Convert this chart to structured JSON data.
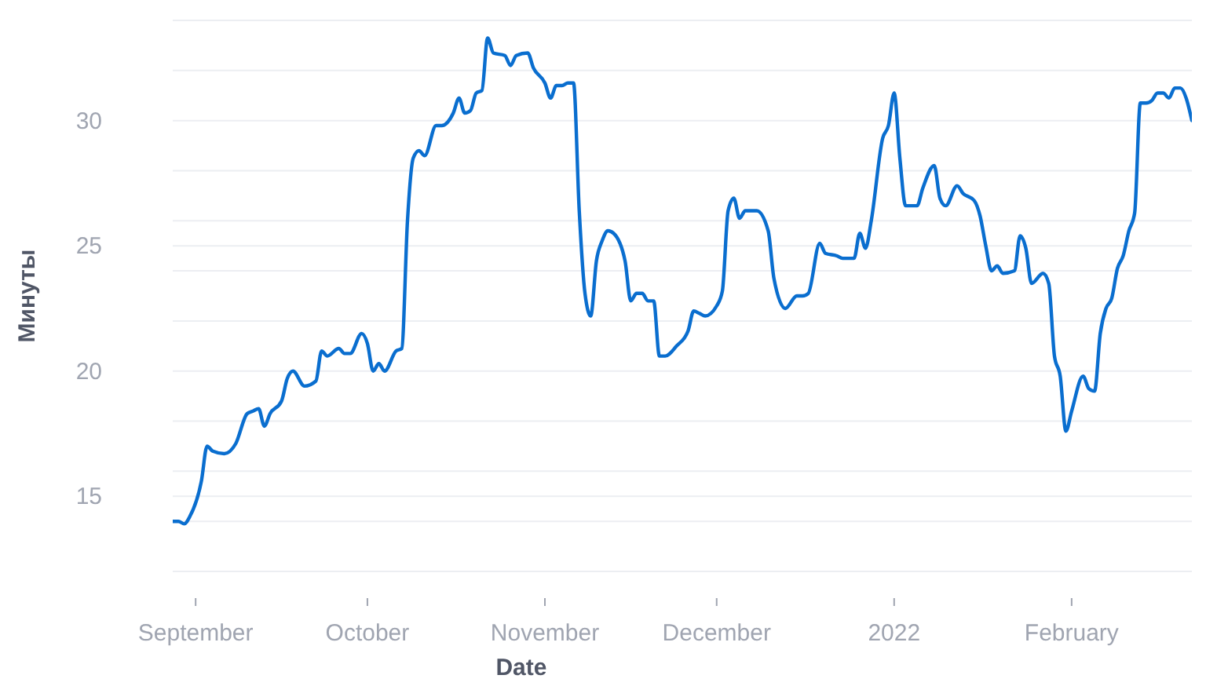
{
  "chart_data": {
    "type": "line",
    "xlabel": "Date",
    "ylabel": "Минуты",
    "x": [
      "2021-08-28",
      "2021-08-29",
      "2021-08-30",
      "2021-08-31",
      "2021-09-02",
      "2021-09-03",
      "2021-09-04",
      "2021-09-06",
      "2021-09-08",
      "2021-09-10",
      "2021-09-11",
      "2021-09-12",
      "2021-09-13",
      "2021-09-14",
      "2021-09-16",
      "2021-09-17",
      "2021-09-18",
      "2021-09-20",
      "2021-09-22",
      "2021-09-23",
      "2021-09-24",
      "2021-09-26",
      "2021-09-27",
      "2021-09-28",
      "2021-09-30",
      "2021-10-01",
      "2021-10-02",
      "2021-10-03",
      "2021-10-04",
      "2021-10-06",
      "2021-10-07",
      "2021-10-08",
      "2021-10-09",
      "2021-10-10",
      "2021-10-11",
      "2021-10-13",
      "2021-10-14",
      "2021-10-16",
      "2021-10-17",
      "2021-10-18",
      "2021-10-19",
      "2021-10-20",
      "2021-10-21",
      "2021-10-22",
      "2021-10-23",
      "2021-10-25",
      "2021-10-26",
      "2021-10-27",
      "2021-10-29",
      "2021-10-30",
      "2021-11-01",
      "2021-11-02",
      "2021-11-03",
      "2021-11-04",
      "2021-11-05",
      "2021-11-06",
      "2021-11-07",
      "2021-11-08",
      "2021-11-09",
      "2021-11-10",
      "2021-11-11",
      "2021-11-12",
      "2021-11-13",
      "2021-11-15",
      "2021-11-16",
      "2021-11-17",
      "2021-11-18",
      "2021-11-19",
      "2021-11-20",
      "2021-11-21",
      "2021-11-22",
      "2021-11-24",
      "2021-11-26",
      "2021-11-27",
      "2021-11-28",
      "2021-11-29",
      "2021-12-01",
      "2021-12-02",
      "2021-12-03",
      "2021-12-04",
      "2021-12-05",
      "2021-12-06",
      "2021-12-08",
      "2021-12-10",
      "2021-12-11",
      "2021-12-13",
      "2021-12-15",
      "2021-12-16",
      "2021-12-17",
      "2021-12-19",
      "2021-12-20",
      "2021-12-22",
      "2021-12-23",
      "2021-12-25",
      "2021-12-26",
      "2021-12-27",
      "2021-12-28",
      "2021-12-30",
      "2021-12-31",
      "2022-01-01",
      "2022-01-02",
      "2022-01-03",
      "2022-01-04",
      "2022-01-05",
      "2022-01-06",
      "2022-01-08",
      "2022-01-09",
      "2022-01-10",
      "2022-01-12",
      "2022-01-13",
      "2022-01-15",
      "2022-01-16",
      "2022-01-17",
      "2022-01-18",
      "2022-01-19",
      "2022-01-20",
      "2022-01-22",
      "2022-01-23",
      "2022-01-24",
      "2022-01-25",
      "2022-01-27",
      "2022-01-28",
      "2022-01-29",
      "2022-01-30",
      "2022-01-31",
      "2022-02-01",
      "2022-02-03",
      "2022-02-04",
      "2022-02-05",
      "2022-02-06",
      "2022-02-07",
      "2022-02-08",
      "2022-02-09",
      "2022-02-10",
      "2022-02-11",
      "2022-02-12",
      "2022-02-13",
      "2022-02-14",
      "2022-02-15",
      "2022-02-16",
      "2022-02-17",
      "2022-02-18",
      "2022-02-19",
      "2022-02-20",
      "2022-02-21",
      "2022-02-22"
    ],
    "series": [
      {
        "color": "#0a6ecf",
        "values": [
          14.0,
          14.0,
          13.9,
          14.2,
          15.6,
          17.0,
          16.8,
          16.7,
          17.1,
          18.3,
          18.4,
          18.5,
          17.8,
          18.3,
          18.8,
          19.7,
          20.0,
          19.4,
          19.6,
          20.8,
          20.6,
          20.9,
          20.7,
          20.7,
          21.5,
          21.1,
          20.0,
          20.3,
          20.0,
          20.8,
          20.9,
          26.0,
          28.5,
          28.8,
          28.6,
          29.8,
          29.8,
          30.3,
          30.9,
          30.3,
          30.4,
          31.1,
          31.2,
          33.3,
          32.7,
          32.6,
          32.2,
          32.6,
          32.7,
          32.1,
          31.5,
          30.9,
          31.4,
          31.4,
          31.5,
          31.5,
          26.4,
          23.1,
          22.2,
          24.4,
          25.2,
          25.6,
          25.5,
          24.4,
          22.8,
          23.1,
          23.1,
          22.8,
          22.8,
          20.6,
          20.6,
          21.0,
          21.6,
          22.4,
          22.3,
          22.2,
          22.6,
          23.2,
          26.4,
          26.9,
          26.1,
          26.4,
          26.4,
          25.6,
          23.7,
          22.5,
          23.0,
          23.0,
          23.1,
          25.1,
          24.7,
          24.6,
          24.5,
          24.5,
          25.5,
          24.9,
          26.0,
          29.3,
          29.8,
          31.1,
          28.5,
          26.6,
          26.6,
          26.6,
          27.3,
          28.2,
          26.9,
          26.6,
          27.4,
          27.1,
          26.8,
          26.2,
          25.0,
          24.0,
          24.2,
          23.9,
          24.0,
          25.4,
          24.9,
          23.5,
          23.9,
          23.5,
          20.6,
          19.8,
          17.6,
          18.4,
          19.8,
          19.3,
          19.2,
          21.5,
          22.5,
          22.9,
          24.1,
          24.6,
          25.6,
          26.3,
          30.7,
          30.7,
          30.8,
          31.1,
          31.1,
          30.9,
          31.3,
          31.3,
          30.9,
          30.0
        ]
      }
    ],
    "xlim": [
      "2021-08-28",
      "2022-02-22"
    ],
    "xticks": [
      {
        "value": "2021-09-01",
        "label": "September"
      },
      {
        "value": "2021-10-01",
        "label": "October"
      },
      {
        "value": "2021-11-01",
        "label": "November"
      },
      {
        "value": "2021-12-01",
        "label": "December"
      },
      {
        "value": "2022-01-01",
        "label": "2022"
      },
      {
        "value": "2022-02-01",
        "label": "February"
      }
    ],
    "ylim": [
      12,
      34
    ],
    "yticks": [
      {
        "value": 12,
        "label": null
      },
      {
        "value": 14,
        "label": null
      },
      15,
      {
        "value": 16,
        "label": null
      },
      {
        "value": 18,
        "label": null
      },
      20,
      {
        "value": 22,
        "label": null
      },
      {
        "value": 24,
        "label": null
      },
      25,
      {
        "value": 26,
        "label": null
      },
      {
        "value": 28,
        "label": null
      },
      30,
      {
        "value": 32,
        "label": null
      },
      {
        "value": 34,
        "label": null
      }
    ],
    "grid": "y"
  }
}
